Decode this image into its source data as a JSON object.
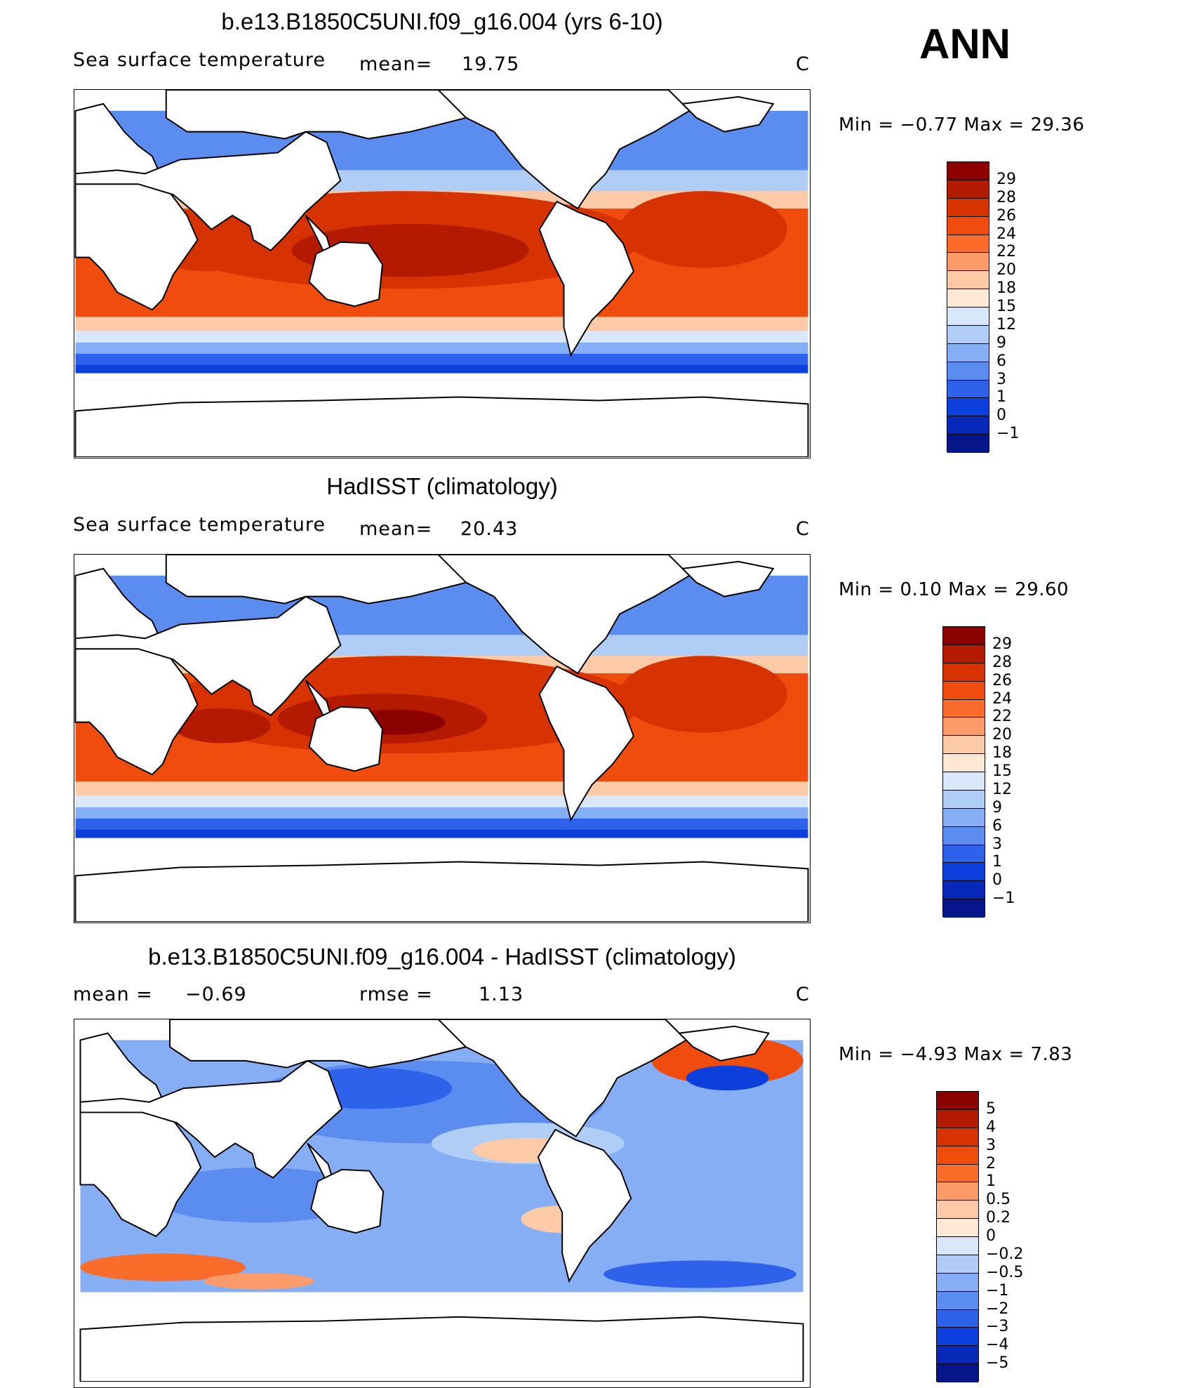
{
  "season": "ANN",
  "panels": [
    {
      "title": "b.e13.B1850C5UNI.f09_g16.004 (yrs 6-10)",
      "variable": "Sea surface temperature",
      "mean_text": "mean=",
      "mean_value": "19.75",
      "units": "C",
      "minmax": "Min =   −0.77  Max =    29.36",
      "colorbar": {
        "labels": [
          "29",
          "28",
          "26",
          "24",
          "22",
          "20",
          "18",
          "15",
          "12",
          "9",
          "6",
          "3",
          "1",
          "0",
          "−1"
        ],
        "colors": [
          "#8b0000",
          "#b41a00",
          "#d73300",
          "#ef4c0e",
          "#fa6c2a",
          "#fc9b6a",
          "#fdcaa8",
          "#fde8d6",
          "#d8e8fa",
          "#b0cdf6",
          "#86aef4",
          "#5b8cf0",
          "#2e62ea",
          "#0c3fdc",
          "#0828ba",
          "#06168a"
        ]
      },
      "chart_data": {
        "type": "heatmap",
        "title": "b.e13.B1850C5UNI.f09_g16.004 (yrs 6-10)",
        "variable": "Sea surface temperature",
        "units": "C",
        "mean": 19.75,
        "min": -0.77,
        "max": 29.36,
        "levels": [
          -1,
          0,
          1,
          3,
          6,
          9,
          12,
          15,
          18,
          20,
          22,
          24,
          26,
          28,
          29
        ]
      }
    },
    {
      "title": "HadISST (climatology)",
      "variable": "Sea surface temperature",
      "mean_text": "mean=",
      "mean_value": "20.43",
      "units": "C",
      "minmax": "Min =    0.10  Max =    29.60",
      "colorbar": {
        "labels": [
          "29",
          "28",
          "26",
          "24",
          "22",
          "20",
          "18",
          "15",
          "12",
          "9",
          "6",
          "3",
          "1",
          "0",
          "−1"
        ],
        "colors": [
          "#8b0000",
          "#b41a00",
          "#d73300",
          "#ef4c0e",
          "#fa6c2a",
          "#fc9b6a",
          "#fdcaa8",
          "#fde8d6",
          "#d8e8fa",
          "#b0cdf6",
          "#86aef4",
          "#5b8cf0",
          "#2e62ea",
          "#0c3fdc",
          "#0828ba",
          "#06168a"
        ]
      },
      "chart_data": {
        "type": "heatmap",
        "title": "HadISST (climatology)",
        "variable": "Sea surface temperature",
        "units": "C",
        "mean": 20.43,
        "min": 0.1,
        "max": 29.6,
        "levels": [
          -1,
          0,
          1,
          3,
          6,
          9,
          12,
          15,
          18,
          20,
          22,
          24,
          26,
          28,
          29
        ]
      }
    },
    {
      "title": "b.e13.B1850C5UNI.f09_g16.004 - HadISST (climatology)",
      "mean_text": "mean =",
      "mean_value": "−0.69",
      "rmse_text": "rmse =",
      "rmse_value": "1.13",
      "units": "C",
      "minmax": "Min =   −4.93  Max =     7.83",
      "colorbar": {
        "labels": [
          "5",
          "4",
          "3",
          "2",
          "1",
          "0.5",
          "0.2",
          "0",
          "−0.2",
          "−0.5",
          "−1",
          "−2",
          "−3",
          "−4",
          "−5"
        ],
        "colors": [
          "#8b0000",
          "#b41a00",
          "#d73300",
          "#ef4c0e",
          "#fa6c2a",
          "#fc9b6a",
          "#fdcaa8",
          "#fde8d6",
          "#d8e8fa",
          "#b0cdf6",
          "#86aef4",
          "#5b8cf0",
          "#2e62ea",
          "#0c3fdc",
          "#0828ba",
          "#06168a"
        ]
      },
      "chart_data": {
        "type": "heatmap",
        "title": "b.e13.B1850C5UNI.f09_g16.004 - HadISST (climatology)",
        "units": "C",
        "mean": -0.69,
        "rmse": 1.13,
        "min": -4.93,
        "max": 7.83,
        "levels": [
          -5,
          -4,
          -3,
          -2,
          -1,
          -0.5,
          -0.2,
          0,
          0.2,
          0.5,
          1,
          2,
          3,
          4,
          5
        ]
      }
    }
  ]
}
